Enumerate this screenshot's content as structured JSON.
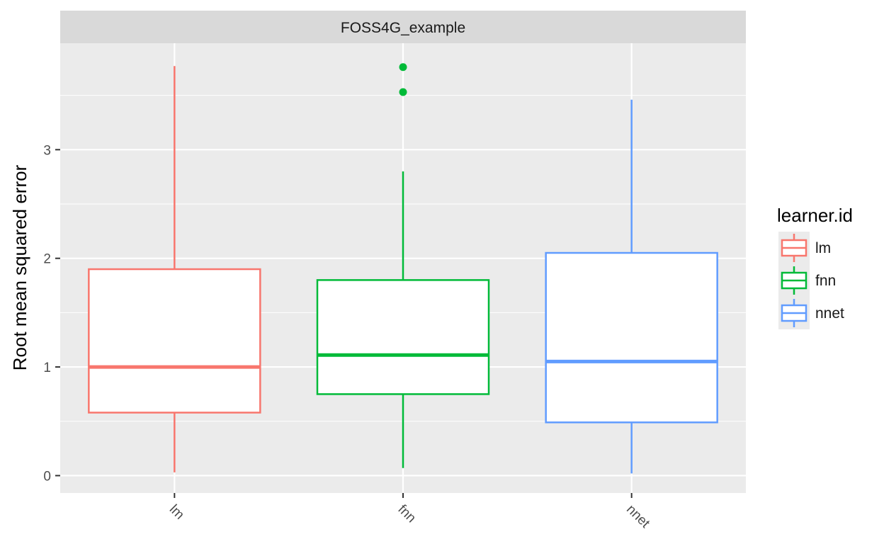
{
  "chart_data": {
    "type": "boxplot",
    "facet_title": "FOSS4G_example",
    "ylabel": "Root mean squared error",
    "xlabel": "",
    "ylim": [
      -0.16,
      3.98
    ],
    "y_ticks": [
      0,
      1,
      2,
      3
    ],
    "categories": [
      "lm",
      "fnn",
      "nnet"
    ],
    "legend": {
      "title": "learner.id",
      "position": "right"
    },
    "grid": true,
    "series": [
      {
        "name": "lm",
        "color": "#F8766D",
        "whisker_low": 0.03,
        "q1": 0.58,
        "median": 1.0,
        "q3": 1.9,
        "whisker_high": 3.77,
        "outliers": []
      },
      {
        "name": "fnn",
        "color": "#00BA38",
        "whisker_low": 0.07,
        "q1": 0.75,
        "median": 1.11,
        "q3": 1.8,
        "whisker_high": 2.8,
        "outliers": [
          3.53,
          3.76
        ]
      },
      {
        "name": "nnet",
        "color": "#619CFF",
        "whisker_low": 0.02,
        "q1": 0.49,
        "median": 1.05,
        "q3": 2.05,
        "whisker_high": 3.46,
        "outliers": []
      }
    ]
  }
}
